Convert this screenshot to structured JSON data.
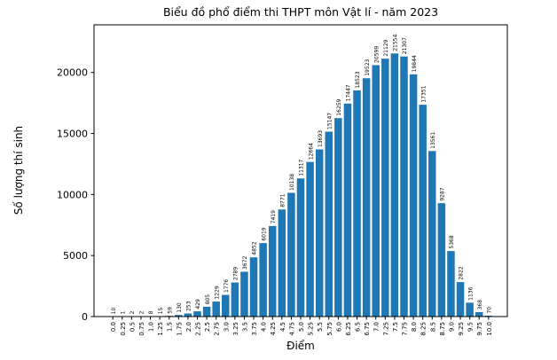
{
  "chart_data": {
    "type": "bar",
    "title": "Biểu đồ phổ điểm thi THPT môn Vật lí - năm 2023",
    "xlabel": "Điểm",
    "ylabel": "Số lượng thí sinh",
    "bar_color": "#1f77b4",
    "axis_color": "#000000",
    "grid": false,
    "legend": null,
    "ylim": [
      0,
      23900
    ],
    "ytick_values": [
      0,
      5000,
      10000,
      15000,
      20000
    ],
    "ytick_labels": [
      "0",
      "5000",
      "10000",
      "15000",
      "20000"
    ],
    "categories": [
      "0.0",
      "0.25",
      "0.5",
      "0.75",
      "1.0",
      "1.25",
      "1.5",
      "1.75",
      "2.0",
      "2.25",
      "2.5",
      "2.75",
      "3.0",
      "3.25",
      "3.5",
      "3.75",
      "4.0",
      "4.25",
      "4.5",
      "4.75",
      "5.0",
      "5.25",
      "5.5",
      "5.75",
      "6.0",
      "6.25",
      "6.5",
      "6.75",
      "7.0",
      "7.25",
      "7.5",
      "7.75",
      "8.0",
      "8.25",
      "8.5",
      "8.75",
      "9.0",
      "9.25",
      "9.5",
      "9.75",
      "10.0"
    ],
    "values": [
      10,
      1,
      2,
      2,
      8,
      15,
      59,
      130,
      253,
      429,
      805,
      1229,
      1776,
      2789,
      3672,
      4852,
      6019,
      7419,
      8771,
      10138,
      11317,
      12664,
      13693,
      15147,
      16259,
      17447,
      18523,
      19523,
      20599,
      21129,
      21554,
      21307,
      19844,
      17351,
      13561,
      9287,
      5368,
      2822,
      1136,
      368,
      70
    ],
    "value_labels": [
      "10",
      "1",
      "2",
      "2",
      "8",
      "15",
      "59",
      "130",
      "253",
      "429",
      "805",
      "1229",
      "1776",
      "2789",
      "3672",
      "4852",
      "6019",
      "7419",
      "8771",
      "10138",
      "11317",
      "12664",
      "13693",
      "15147",
      "16259",
      "17447",
      "18523",
      "19523",
      "20599",
      "21129",
      "21554",
      "21307",
      "19844",
      "17351",
      "13561",
      "9287",
      "5368",
      "2822",
      "1136",
      "368",
      "70"
    ]
  }
}
